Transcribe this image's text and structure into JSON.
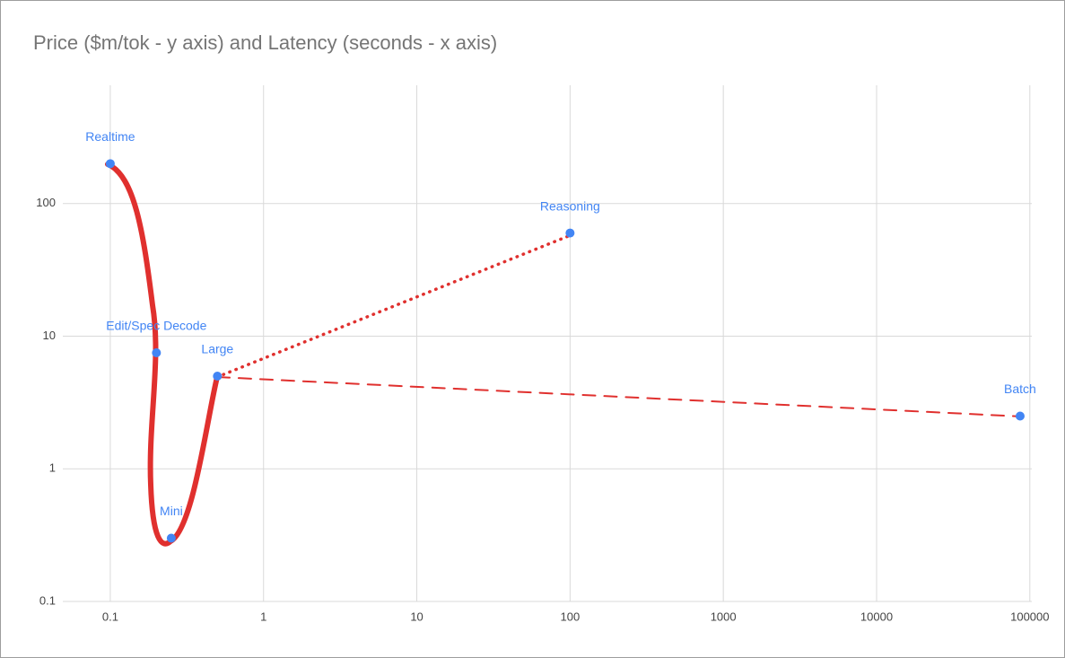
{
  "chart_data": {
    "type": "scatter",
    "title": "Price ($m/tok - y axis) and Latency (seconds - x axis)",
    "x": [
      0.1,
      0.2,
      0.25,
      0.5,
      100,
      86400
    ],
    "values": [
      200,
      7.5,
      0.3,
      5,
      60,
      2.5
    ],
    "point_labels": [
      "Realtime",
      "Edit/Spec Decode",
      "Mini",
      "Large",
      "Reasoning",
      "Batch"
    ],
    "color": "#4285f4",
    "x_log_scale": true,
    "y_log_scale": true,
    "xlim": [
      0.049,
      103000
    ],
    "xticks": [
      0.1,
      1,
      10,
      100,
      1000,
      10000,
      100000
    ],
    "ylim": [
      0.1,
      780
    ],
    "yticks": [
      0.1,
      1,
      10,
      100
    ],
    "grid": true
  }
}
